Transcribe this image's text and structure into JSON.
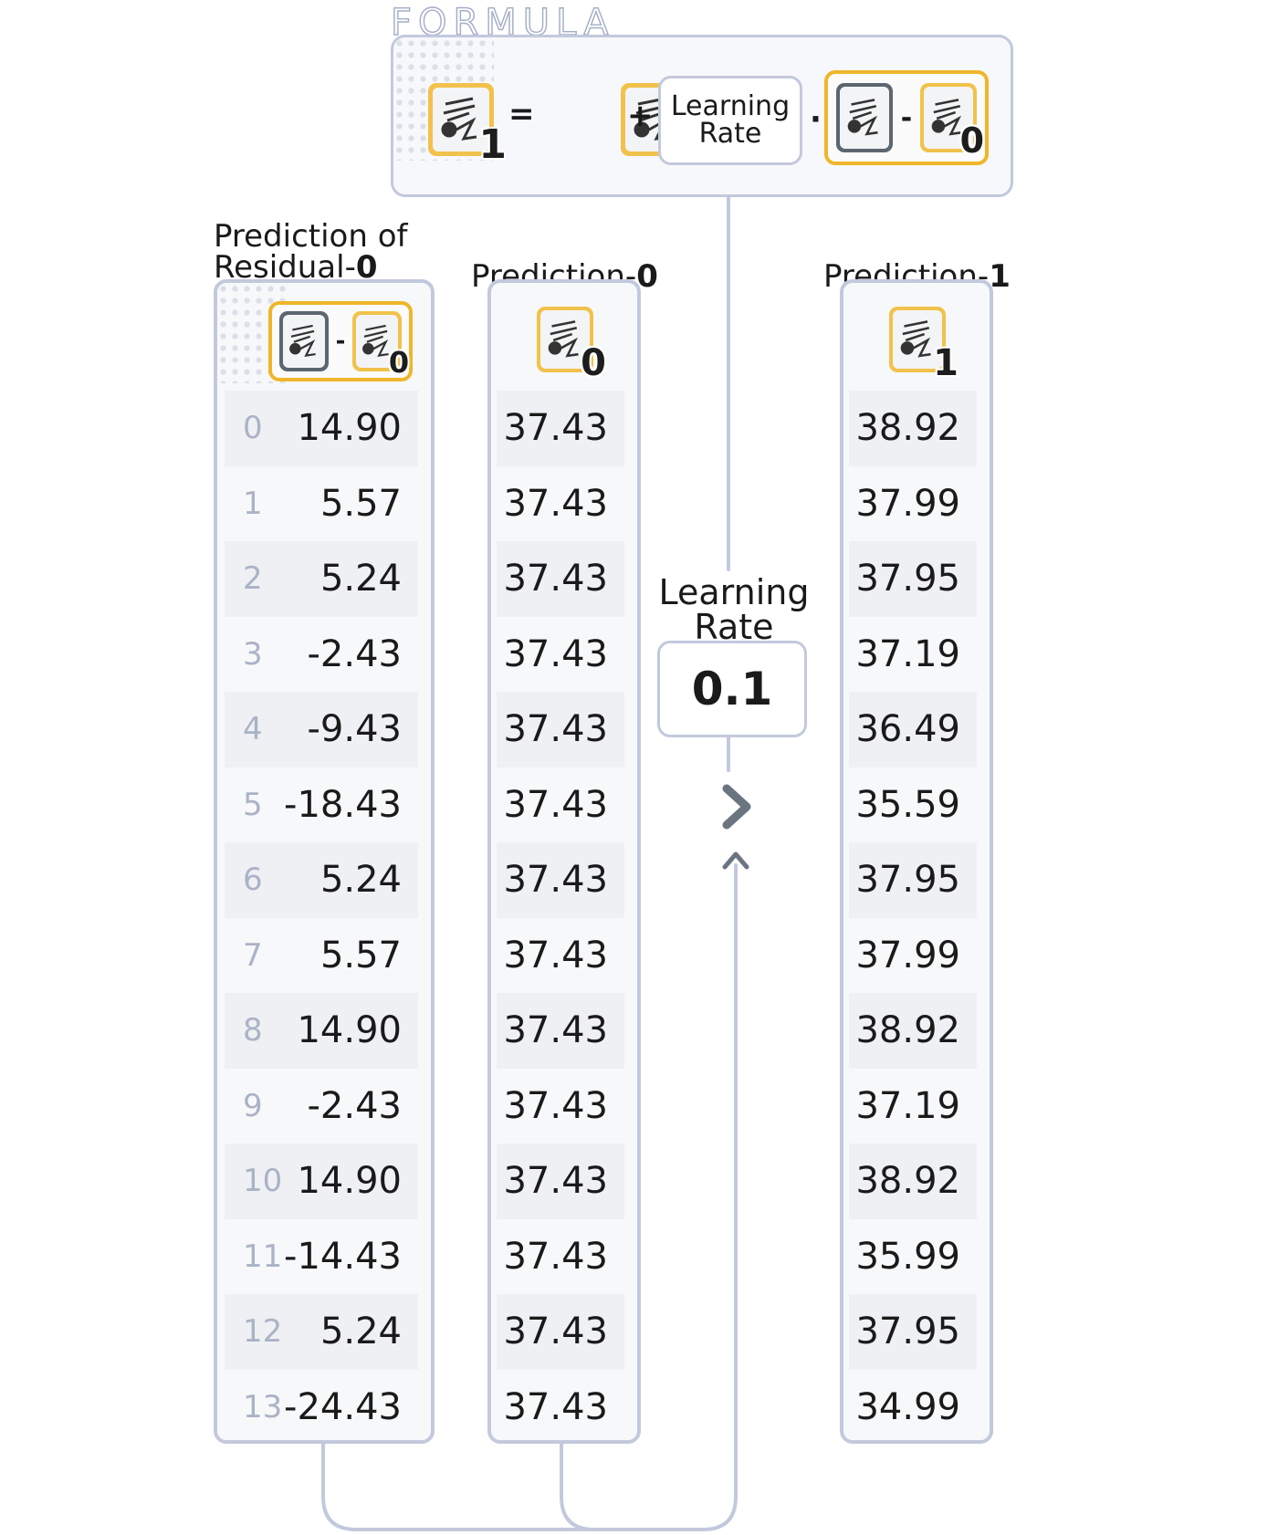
{
  "formula": {
    "label": "FORMULA",
    "equals": "=",
    "plus": "+",
    "dot": "·",
    "minus": "-",
    "learning_rate_line1": "Learning",
    "learning_rate_line2": "Rate",
    "pred1_sub": "1",
    "pred0_sub": "0",
    "target_sub": "0"
  },
  "residual_column": {
    "title_line1": "Prediction of",
    "title_line2_prefix": "Residual-",
    "title_line2_bold": "0",
    "icon_minus": "-",
    "icon_sub": "0",
    "indices": [
      "0",
      "1",
      "2",
      "3",
      "4",
      "5",
      "6",
      "7",
      "8",
      "9",
      "10",
      "11",
      "12",
      "13"
    ],
    "values": [
      "14.90",
      "5.57",
      "5.24",
      "-2.43",
      "-9.43",
      "-18.43",
      "5.24",
      "5.57",
      "14.90",
      "-2.43",
      "14.90",
      "-14.43",
      "5.24",
      "-24.43"
    ]
  },
  "prediction0_column": {
    "title_prefix": "Prediction-",
    "title_bold": "0",
    "icon_sub": "0",
    "values": [
      "37.43",
      "37.43",
      "37.43",
      "37.43",
      "37.43",
      "37.43",
      "37.43",
      "37.43",
      "37.43",
      "37.43",
      "37.43",
      "37.43",
      "37.43",
      "37.43"
    ]
  },
  "learning_rate": {
    "label_line1": "Learning",
    "label_line2": "Rate",
    "value": "0.1"
  },
  "prediction1_column": {
    "title_prefix": "Prediction-",
    "title_bold": "1",
    "icon_sub": "1",
    "values": [
      "38.92",
      "37.99",
      "37.95",
      "37.19",
      "36.49",
      "35.59",
      "37.95",
      "37.99",
      "38.92",
      "37.19",
      "38.92",
      "35.99",
      "37.95",
      "34.99"
    ]
  },
  "colors": {
    "border": "#c3c9dc",
    "accent_yellow": "#efb62b",
    "index_text": "#aab3c6",
    "arrow": "#6a7580"
  },
  "icons": [
    "tree-icon",
    "chevron-right-icon",
    "arrow-up-icon"
  ]
}
